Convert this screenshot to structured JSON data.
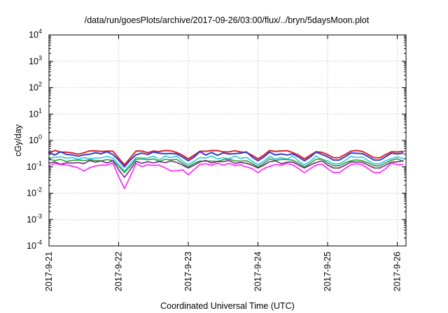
{
  "chart_data": {
    "type": "line",
    "title": "/data/run/goesPlots/archive/2017-09-26/03:00/flux/../bryn/5daysMoon.plot",
    "xlabel": "Coordinated Universal Time (UTC)",
    "ylabel": "cGy/day",
    "yscale": "log",
    "ylim": [
      0.0001,
      10000
    ],
    "yticks": [
      {
        "value": 0.0001,
        "base": "10",
        "exp": "-4"
      },
      {
        "value": 0.001,
        "base": "10",
        "exp": "-3"
      },
      {
        "value": 0.01,
        "base": "10",
        "exp": "-2"
      },
      {
        "value": 0.1,
        "base": "10",
        "exp": "-1"
      },
      {
        "value": 1,
        "base": "10",
        "exp": "0"
      },
      {
        "value": 10,
        "base": "10",
        "exp": "1"
      },
      {
        "value": 100,
        "base": "10",
        "exp": "2"
      },
      {
        "value": 1000,
        "base": "10",
        "exp": "3"
      },
      {
        "value": 10000,
        "base": "10",
        "exp": "4"
      }
    ],
    "xlim": [
      "2017-09-21",
      "2017-09-26T03:00"
    ],
    "xtick_labels": [
      "2017-9-21",
      "2017-9-22",
      "2017-9-23",
      "2017-9-24",
      "2017-9-25",
      "2017-9-26"
    ],
    "grid": true,
    "series": [
      {
        "color": "#e0202a",
        "base": 0.38,
        "dips": [
          [
            "2017-09-21T10:00",
            0.3
          ],
          [
            "2017-09-22T02:00",
            0.12
          ],
          [
            "2017-09-23T00:00",
            0.2
          ],
          [
            "2017-09-24T00:00",
            0.2
          ],
          [
            "2017-09-24T16:00",
            0.2
          ],
          [
            "2017-09-25T03:00",
            0.22
          ],
          [
            "2017-09-25T17:00",
            0.22
          ]
        ]
      },
      {
        "color": "#2f3fd0",
        "base": 0.32,
        "dips": [
          [
            "2017-09-21T10:00",
            0.25
          ],
          [
            "2017-09-22T02:00",
            0.1
          ],
          [
            "2017-09-23T00:00",
            0.17
          ],
          [
            "2017-09-24T00:00",
            0.17
          ],
          [
            "2017-09-24T16:00",
            0.17
          ],
          [
            "2017-09-25T03:00",
            0.18
          ],
          [
            "2017-09-25T17:00",
            0.18
          ]
        ]
      },
      {
        "color": "#29c6e6",
        "base": 0.22,
        "dips": [
          [
            "2017-09-22T02:00",
            0.07
          ],
          [
            "2017-09-23T00:00",
            0.12
          ],
          [
            "2017-09-24T00:00",
            0.12
          ],
          [
            "2017-09-24T16:00",
            0.12
          ],
          [
            "2017-09-25T03:00",
            0.13
          ],
          [
            "2017-09-25T17:00",
            0.13
          ]
        ]
      },
      {
        "color": "#2aa02a",
        "base": 0.18,
        "dips": [
          [
            "2017-09-22T02:00",
            0.06
          ],
          [
            "2017-09-23T00:00",
            0.1
          ],
          [
            "2017-09-24T00:00",
            0.1
          ],
          [
            "2017-09-24T16:00",
            0.1
          ],
          [
            "2017-09-25T03:00",
            0.11
          ],
          [
            "2017-09-25T17:00",
            0.11
          ]
        ]
      },
      {
        "color": "#7a1f8a",
        "base": 0.15,
        "dips": [
          [
            "2017-09-22T02:00",
            0.04
          ],
          [
            "2017-09-23T00:00",
            0.09
          ],
          [
            "2017-09-24T00:00",
            0.09
          ],
          [
            "2017-09-24T16:00",
            0.09
          ],
          [
            "2017-09-25T03:00",
            0.09
          ],
          [
            "2017-09-25T17:00",
            0.09
          ]
        ]
      },
      {
        "color": "#ff20ff",
        "base": 0.12,
        "dips": [
          [
            "2017-09-21T12:00",
            0.07
          ],
          [
            "2017-09-22T02:00",
            0.015
          ],
          [
            "2017-09-22T19:00",
            0.07
          ],
          [
            "2017-09-23T00:00",
            0.05
          ],
          [
            "2017-09-24T00:00",
            0.06
          ],
          [
            "2017-09-24T16:00",
            0.06
          ],
          [
            "2017-09-25T03:00",
            0.06
          ],
          [
            "2017-09-25T17:00",
            0.06
          ]
        ]
      }
    ]
  }
}
